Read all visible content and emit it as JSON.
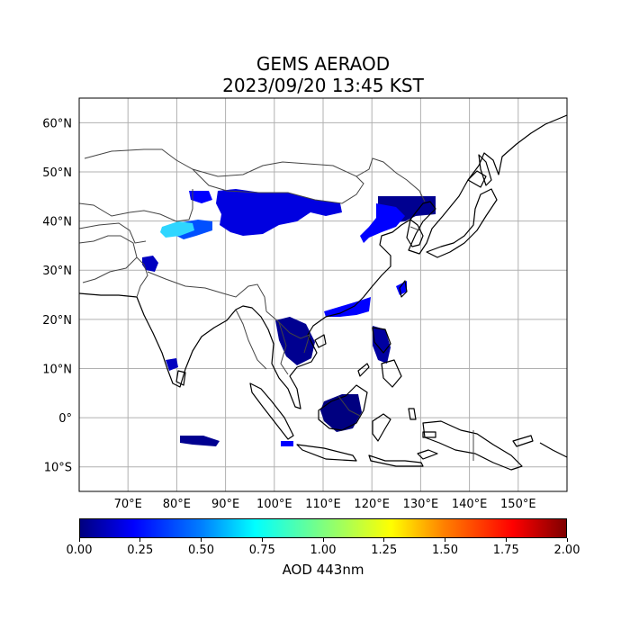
{
  "title": {
    "line1": "GEMS AERAOD",
    "line2": "2023/09/20 13:45 KST"
  },
  "map": {
    "lon_range": [
      60,
      160
    ],
    "lat_range": [
      -15,
      65
    ],
    "lon_ticks": [
      {
        "value": 70,
        "label": "70°E"
      },
      {
        "value": 80,
        "label": "80°E"
      },
      {
        "value": 90,
        "label": "90°E"
      },
      {
        "value": 100,
        "label": "100°E"
      },
      {
        "value": 110,
        "label": "110°E"
      },
      {
        "value": 120,
        "label": "120°E"
      },
      {
        "value": 130,
        "label": "130°E"
      },
      {
        "value": 140,
        "label": "140°E"
      },
      {
        "value": 150,
        "label": "150°E"
      }
    ],
    "lat_ticks": [
      {
        "value": 60,
        "label": "60°N"
      },
      {
        "value": 50,
        "label": "50°N"
      },
      {
        "value": 40,
        "label": "40°N"
      },
      {
        "value": 30,
        "label": "30°N"
      },
      {
        "value": 20,
        "label": "20°N"
      },
      {
        "value": 10,
        "label": "10°N"
      },
      {
        "value": 0,
        "label": "0°"
      },
      {
        "value": -10,
        "label": "10°S"
      }
    ],
    "grid": true,
    "colors": {
      "coast": "#000000",
      "border": "#444444",
      "grid": "#b0b0b0"
    }
  },
  "colorbar": {
    "label": "AOD 443nm",
    "range": [
      0,
      2
    ],
    "ticks": [
      "0.00",
      "0.25",
      "0.50",
      "0.75",
      "1.00",
      "1.25",
      "1.50",
      "1.75",
      "2.00"
    ],
    "colormap": "jet"
  }
}
